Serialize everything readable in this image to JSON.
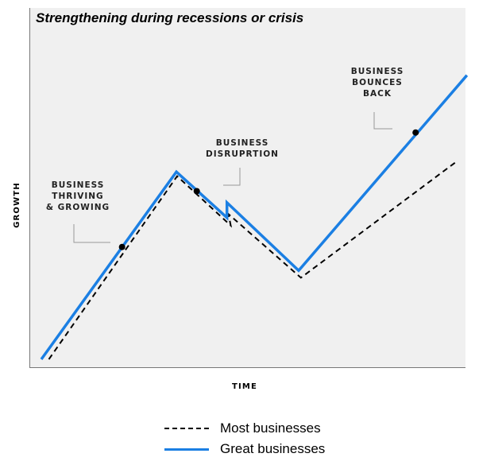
{
  "chart_data": {
    "type": "line",
    "title": "Strengthening during recessions or crisis",
    "xlabel": "TIME",
    "ylabel": "GROWTH",
    "grid": false,
    "legend_position": "bottom",
    "series": [
      {
        "name": "Most businesses",
        "style": "dashed",
        "color": "#000000",
        "points": [
          [
            1,
            0
          ],
          [
            18,
            25.6
          ],
          [
            25.1,
            18.7
          ],
          [
            24.8,
            20.3
          ],
          [
            34.4,
            11.4
          ],
          [
            55.1,
            27.7
          ]
        ]
      },
      {
        "name": "Great businesses",
        "style": "solid",
        "color": "#1b7fe3",
        "points": [
          [
            0,
            0
          ],
          [
            17.9,
            26.2
          ],
          [
            24.6,
            19.8
          ],
          [
            24.6,
            21.9
          ],
          [
            34.1,
            12.4
          ],
          [
            56.4,
            39.7
          ]
        ]
      }
    ],
    "annotations": [
      {
        "text": [
          "BUSINESS",
          "THRIVING",
          "& GROWING"
        ],
        "point": [
          10.7,
          15.7
        ]
      },
      {
        "text": [
          "BUSINESS",
          "DISRUPRTION"
        ],
        "point": [
          20.6,
          23.5
        ]
      },
      {
        "text": [
          "BUSINESS",
          "BOUNCES",
          "BACK"
        ],
        "point": [
          49.6,
          31.7
        ]
      }
    ]
  }
}
